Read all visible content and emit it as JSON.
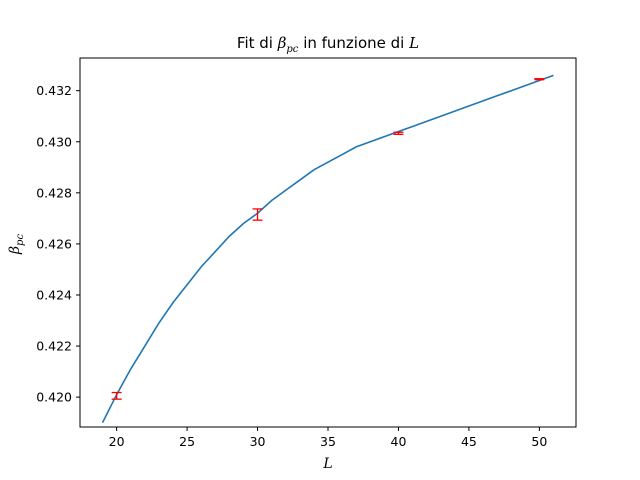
{
  "chart_data": {
    "type": "line",
    "title": {
      "prefix": "Fit di ",
      "symbol": "β",
      "symbol_sub": "pc",
      "middle": " in funzione di ",
      "variable": "L"
    },
    "xlabel": "L",
    "ylabel": {
      "symbol": "β",
      "sub": "pc"
    },
    "xlim": [
      17.4,
      52.6
    ],
    "ylim": [
      0.41883,
      0.43328
    ],
    "xticks": [
      20,
      25,
      30,
      35,
      40,
      45,
      50
    ],
    "yticks": [
      0.42,
      0.422,
      0.424,
      0.426,
      0.428,
      0.43,
      0.432
    ],
    "grid": false,
    "fit_curve": {
      "color": "#1f77b4",
      "x": [
        19,
        20,
        21,
        22,
        23,
        24,
        25,
        26,
        27,
        28,
        29,
        30,
        31,
        32,
        33,
        34,
        35,
        36,
        37,
        38,
        39,
        40,
        41,
        42,
        43,
        44,
        45,
        46,
        47,
        48,
        49,
        50,
        51
      ],
      "y": [
        0.419,
        0.4201,
        0.4211,
        0.422,
        0.4229,
        0.4237,
        0.4244,
        0.4251,
        0.4257,
        0.4263,
        0.4268,
        0.4272,
        0.4277,
        0.4281,
        0.4285,
        0.4289,
        0.4292,
        0.4295,
        0.4298,
        0.43,
        0.4302,
        0.4304,
        0.4306,
        0.4308,
        0.431,
        0.4312,
        0.4314,
        0.4316,
        0.4318,
        0.432,
        0.4322,
        0.4324,
        0.4326
      ]
    },
    "data_points": {
      "color": "#ff0000",
      "points": [
        {
          "x": 20,
          "y": 0.42005,
          "err": 0.00013
        },
        {
          "x": 30,
          "y": 0.42715,
          "err": 0.00022
        },
        {
          "x": 40,
          "y": 0.43033,
          "err": 4e-05
        },
        {
          "x": 50,
          "y": 0.43245,
          "err": 2e-05
        }
      ]
    }
  }
}
